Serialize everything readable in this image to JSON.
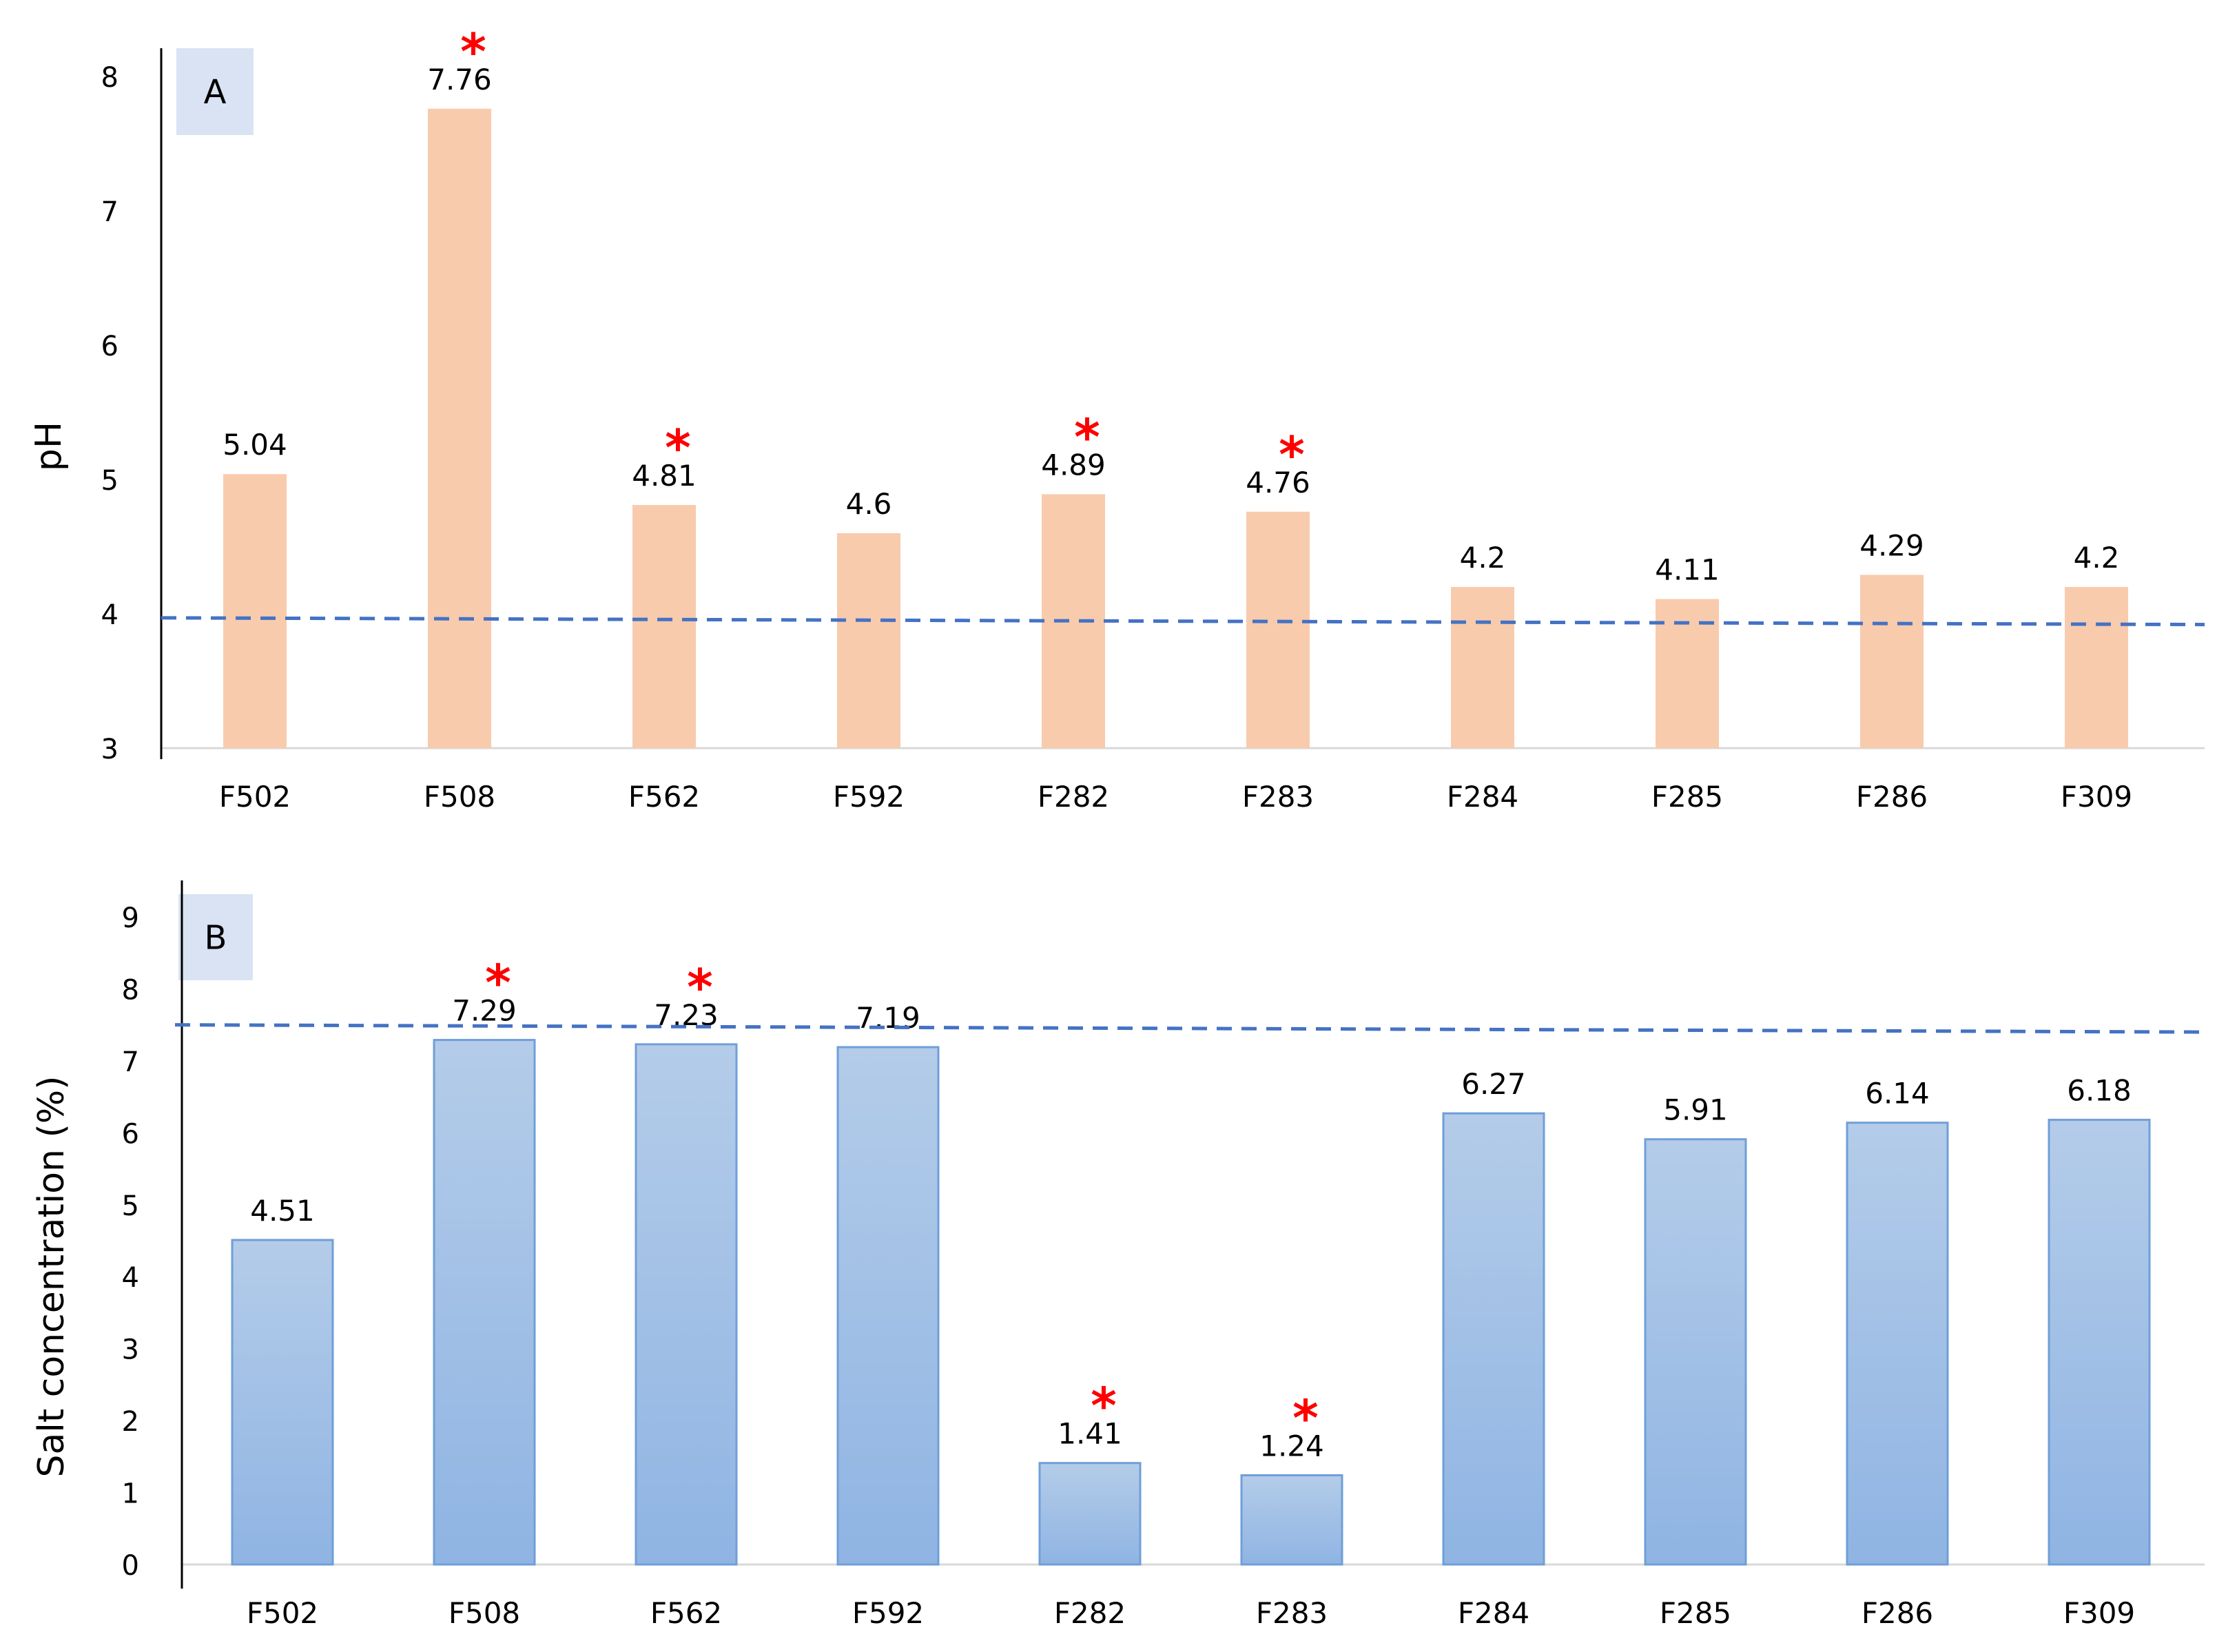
{
  "colors": {
    "panel_a_bar": "#f8cbad",
    "panel_b_bar_top": "#b4cce9",
    "panel_b_bar_bottom": "#8fb4e3",
    "panel_b_bar_stroke": "#6f9fd8",
    "reference_line": "#4472c4",
    "significance_star": "#ff0000",
    "panel_label_bg": "#dae3f3",
    "axis": "#000000",
    "baseline": "#d9d9d9",
    "text": "#000000"
  },
  "chart_data": [
    {
      "type": "bar",
      "panel_label": "A",
      "title": "",
      "xlabel": "",
      "ylabel": "pH",
      "ylim": [
        3,
        8
      ],
      "yticks": [
        "3",
        "4",
        "5",
        "6",
        "7",
        "8"
      ],
      "categories": [
        "F502",
        "F508",
        "F562",
        "F592",
        "F282",
        "F283",
        "F284",
        "F285",
        "F286",
        "F309"
      ],
      "values": [
        5.04,
        7.76,
        4.81,
        4.6,
        4.89,
        4.76,
        4.2,
        4.11,
        4.29,
        4.2
      ],
      "data_labels": [
        "5.04",
        "7.76",
        "4.81",
        "4.6",
        "4.89",
        "4.76",
        "4.2",
        "4.11",
        "4.29",
        "4.2"
      ],
      "significant": [
        false,
        true,
        true,
        false,
        true,
        true,
        false,
        false,
        false,
        false
      ],
      "star_symbol": "*",
      "reference_line": {
        "style": "dashed",
        "y_start": 3.97,
        "y_end": 3.92
      },
      "grid": false
    },
    {
      "type": "bar",
      "panel_label": "B",
      "title": "",
      "xlabel": "",
      "ylabel": "Salt concentration (%)",
      "ylim": [
        0,
        9
      ],
      "yticks": [
        "0",
        "1",
        "2",
        "3",
        "4",
        "5",
        "6",
        "7",
        "8",
        "9"
      ],
      "categories": [
        "F502",
        "F508",
        "F562",
        "F592",
        "F282",
        "F283",
        "F284",
        "F285",
        "F286",
        "F309"
      ],
      "values": [
        4.51,
        7.29,
        7.23,
        7.19,
        1.41,
        1.24,
        6.27,
        5.91,
        6.14,
        6.18
      ],
      "data_labels": [
        "4.51",
        "7.29",
        "7.23",
        "7.19",
        "1.41",
        "1.24",
        "6.27",
        "5.91",
        "6.14",
        "6.18"
      ],
      "significant": [
        false,
        true,
        true,
        false,
        true,
        true,
        false,
        false,
        false,
        false
      ],
      "star_symbol": "*",
      "reference_line": {
        "style": "dashed",
        "y_start": 7.5,
        "y_end": 7.4
      },
      "grid": false
    }
  ]
}
